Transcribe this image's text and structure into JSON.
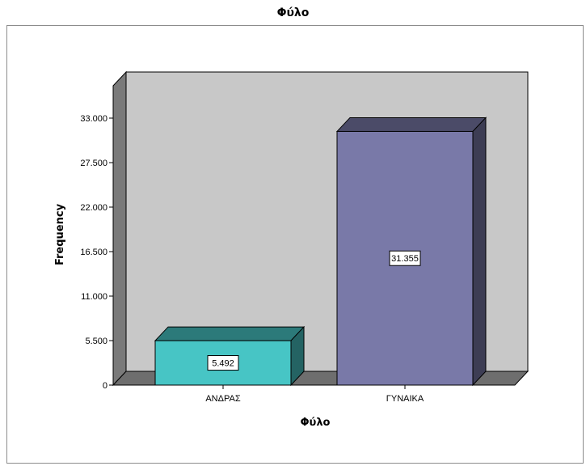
{
  "chart_data": {
    "type": "bar",
    "title": "Φύλο",
    "xlabel": "Φύλο",
    "ylabel": "Frequency",
    "categories": [
      "ΑΝΔΡΑΣ",
      "ΓΥΝΑΙΚΑ"
    ],
    "values": [
      5492,
      31355
    ],
    "data_labels": [
      "5.492",
      "31.355"
    ],
    "ylim": [
      0,
      37000
    ],
    "yticks": [
      0,
      5500,
      11000,
      16500,
      22000,
      27500,
      33000
    ],
    "ytick_labels": [
      "0",
      "5.500",
      "11.000",
      "16.500",
      "22.000",
      "27.500",
      "33.000"
    ],
    "colors": [
      "#47c5c5",
      "#7979a8"
    ],
    "grid": false,
    "style": "3d"
  }
}
